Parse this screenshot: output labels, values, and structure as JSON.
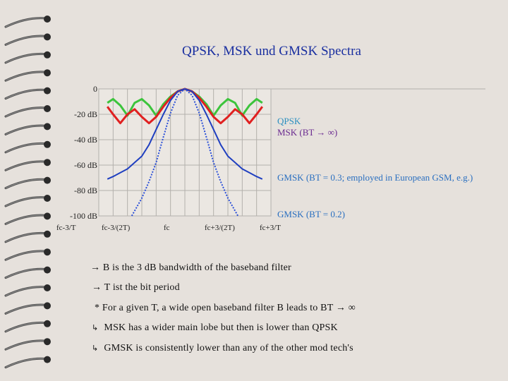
{
  "slide": {
    "title": "QPSK, MSK und GMSK Spectra",
    "background": "#e6e1dc"
  },
  "chart_data": {
    "type": "line",
    "title": "QPSK, MSK und GMSK Spectra",
    "xlabel": "",
    "ylabel": "",
    "x_tick_labels": [
      "fc-3/T",
      "fc-3/(2T)",
      "fc",
      "fc+3/(2T)",
      "fc+3/T"
    ],
    "y_tick_labels": [
      "0",
      "-20 dB",
      "-40 dB",
      "-60 dB",
      "-80 dB",
      "-100 dB"
    ],
    "ylim": [
      -100,
      0
    ],
    "xlim": [
      -3,
      3
    ],
    "x_units": "1/T offset from fc",
    "grid": true,
    "series": [
      {
        "name": "QPSK",
        "color": "#3cc43c",
        "x": [
          -2.7,
          -2.5,
          -2.25,
          -2.0,
          -1.75,
          -1.5,
          -1.25,
          -1.0,
          -0.75,
          -0.5,
          -0.25,
          0.0,
          0.25,
          0.5,
          0.75,
          1.0,
          1.25,
          1.5,
          1.75,
          2.0,
          2.25,
          2.5,
          2.7
        ],
        "y": [
          -11,
          -8,
          -13,
          -21,
          -11,
          -8,
          -13,
          -21,
          -12,
          -6,
          -2,
          0,
          -2,
          -6,
          -12,
          -21,
          -13,
          -8,
          -11,
          -21,
          -13,
          -8,
          -11
        ]
      },
      {
        "name": "MSK (BT → ∞)",
        "color": "#e02020",
        "x": [
          -2.7,
          -2.5,
          -2.25,
          -2.0,
          -1.75,
          -1.5,
          -1.25,
          -1.0,
          -0.75,
          -0.5,
          -0.25,
          0.0,
          0.25,
          0.5,
          0.75,
          1.0,
          1.25,
          1.5,
          1.75,
          2.0,
          2.25,
          2.5,
          2.7
        ],
        "y": [
          -14,
          -20,
          -27,
          -20,
          -16,
          -22,
          -27,
          -22,
          -14,
          -7,
          -2,
          0,
          -2,
          -7,
          -14,
          -22,
          -27,
          -22,
          -16,
          -20,
          -27,
          -20,
          -14
        ]
      },
      {
        "name": "GMSK (BT = 0.3; employed in European GSM, e.g.)",
        "color": "#1f3fc0",
        "x": [
          -2.7,
          -2.5,
          -2.25,
          -2.0,
          -1.75,
          -1.5,
          -1.25,
          -1.0,
          -0.75,
          -0.5,
          -0.25,
          0.0,
          0.25,
          0.5,
          0.75,
          1.0,
          1.25,
          1.5,
          1.75,
          2.0,
          2.25,
          2.5,
          2.7
        ],
        "y": [
          -71,
          -69,
          -66,
          -63,
          -58,
          -53,
          -44,
          -32,
          -20,
          -9,
          -2,
          0,
          -2,
          -9,
          -20,
          -32,
          -44,
          -53,
          -58,
          -63,
          -66,
          -69,
          -71
        ]
      },
      {
        "name": "GMSK (BT = 0.2)",
        "color": "#2a4fd8",
        "x": [
          -1.85,
          -1.5,
          -1.25,
          -1.0,
          -0.75,
          -0.5,
          -0.25,
          0.0,
          0.25,
          0.5,
          0.75,
          1.0,
          1.25,
          1.5,
          1.85
        ],
        "y": [
          -100,
          -86,
          -73,
          -58,
          -38,
          -19,
          -5,
          0,
          -5,
          -19,
          -38,
          -58,
          -73,
          -86,
          -100
        ]
      }
    ]
  },
  "labels": {
    "qpsk": "QPSK",
    "msk": "MSK (BT → ∞)",
    "gmsk03": "GMSK (BT = 0.3; employed in European GSM, e.g.)",
    "gmsk02": "GMSK (BT = 0.2)"
  },
  "notes": [
    "→ B is the 3 dB bandwidth of the baseband filter",
    "→ T ist the bit period",
    "*  For a given T, a wide open baseband filter B leads to BT → ∞",
    "MSK  has a wider main lobe but then is lower than QPSK",
    "GMSK is consistently lower than any of the other mod tech's"
  ],
  "note_markers": [
    "",
    "",
    "",
    "↳",
    "↳"
  ]
}
